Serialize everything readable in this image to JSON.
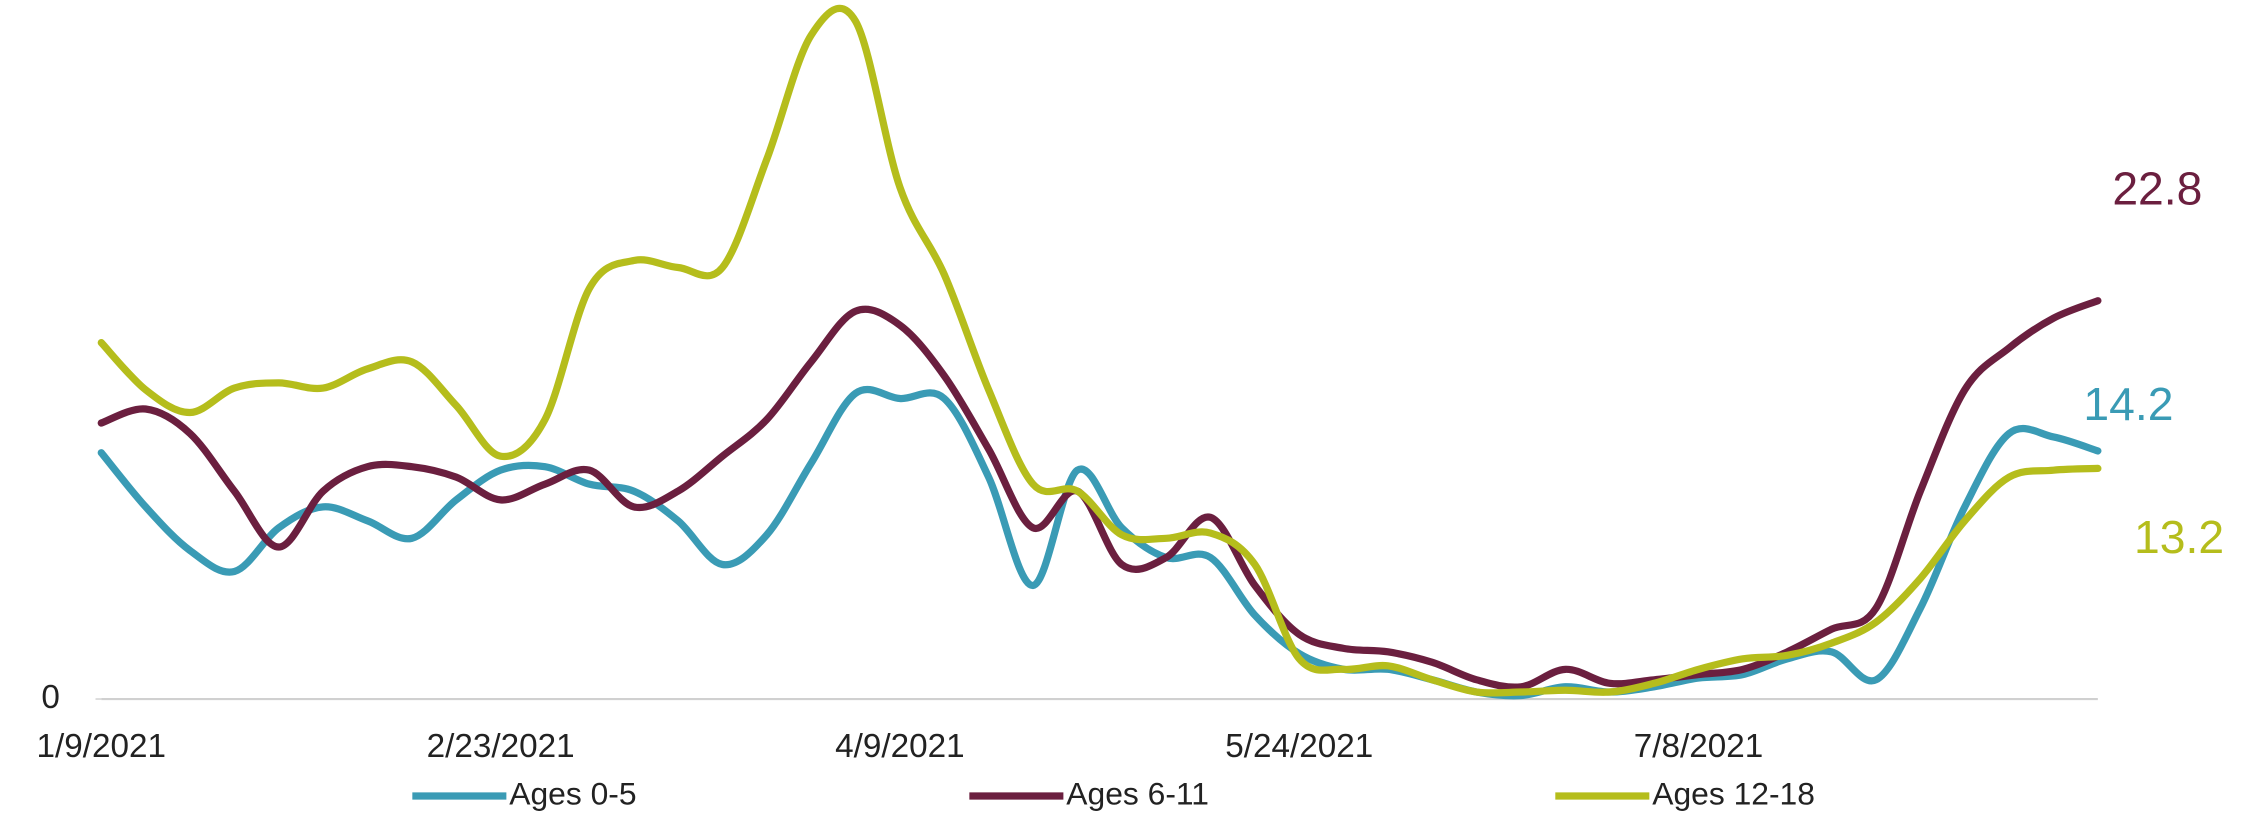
{
  "chart_data": {
    "type": "line",
    "categories": [
      "1/9/2021",
      null,
      null,
      null,
      null,
      null,
      null,
      null,
      null,
      "2/23/2021",
      null,
      null,
      null,
      null,
      null,
      null,
      null,
      null,
      "4/9/2021",
      null,
      null,
      null,
      null,
      null,
      null,
      null,
      null,
      "5/24/2021",
      null,
      null,
      null,
      null,
      null,
      null,
      null,
      null,
      "7/8/2021",
      null,
      null,
      null,
      null,
      null,
      null,
      null,
      null,
      null
    ],
    "series": [
      {
        "name": "Ages 0-5",
        "color": "#3a9bb5",
        "values": [
          14.1,
          11.0,
          8.5,
          7.3,
          9.8,
          11.0,
          10.2,
          9.2,
          11.4,
          13.1,
          13.3,
          12.3,
          11.9,
          10.2,
          7.7,
          9.4,
          13.5,
          17.5,
          17.2,
          17.2,
          12.7,
          6.5,
          13.1,
          9.8,
          8.1,
          8.1,
          4.8,
          2.6,
          1.7,
          1.7,
          1.1,
          0.4,
          0.2,
          0.7,
          0.4,
          0.7,
          1.2,
          1.4,
          2.3,
          2.7,
          1.1,
          5.2,
          11.0,
          15.2,
          15.0,
          14.2
        ]
      },
      {
        "name": "Ages 6-11",
        "color": "#6b1f3f",
        "values": [
          15.8,
          16.6,
          15.2,
          11.9,
          8.7,
          11.9,
          13.3,
          13.3,
          12.7,
          11.4,
          12.3,
          13.1,
          11.0,
          11.9,
          13.9,
          16.0,
          19.3,
          22.2,
          21.4,
          18.5,
          14.3,
          9.8,
          11.9,
          7.7,
          8.1,
          10.4,
          6.5,
          3.7,
          2.9,
          2.7,
          2.1,
          1.1,
          0.7,
          1.7,
          0.9,
          1.1,
          1.4,
          1.7,
          2.7,
          4.0,
          5.2,
          11.9,
          17.7,
          20.1,
          21.8,
          22.8
        ]
      },
      {
        "name": "Ages 12-18",
        "color": "#b5bd1c",
        "values": [
          20.4,
          17.7,
          16.4,
          17.8,
          18.1,
          17.8,
          18.9,
          19.3,
          16.8,
          13.9,
          16.0,
          23.5,
          25.1,
          24.7,
          24.7,
          30.9,
          38.0,
          38.8,
          29.3,
          24.3,
          17.7,
          12.3,
          11.9,
          9.4,
          9.2,
          9.5,
          7.7,
          2.3,
          1.7,
          1.9,
          1.1,
          0.4,
          0.4,
          0.5,
          0.4,
          0.9,
          1.7,
          2.3,
          2.5,
          3.2,
          4.4,
          6.9,
          10.2,
          12.7,
          13.1,
          13.2
        ]
      }
    ],
    "ylim": [
      0,
      40
    ],
    "yticks": [
      0
    ]
  }
}
